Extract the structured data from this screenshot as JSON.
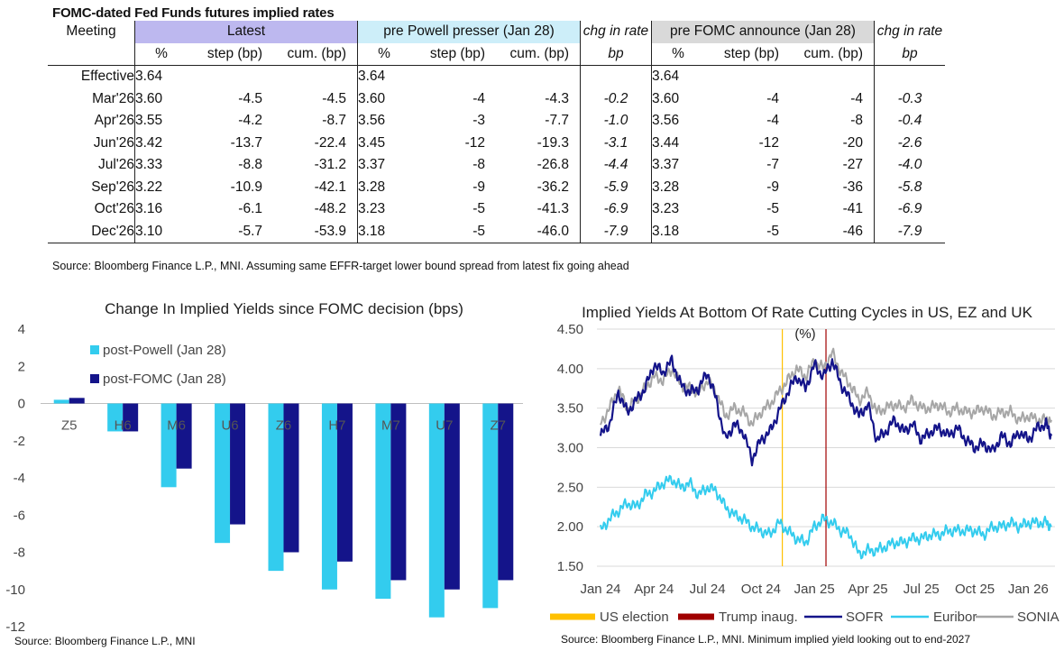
{
  "table": {
    "title": "FOMC-dated Fed Funds futures implied rates",
    "group_headers": {
      "meeting": "Meeting",
      "latest": "Latest",
      "pre_powell": "pre Powell presser (Jan 28)",
      "chg1": "chg in rate",
      "pre_fomc": "pre FOMC announce (Jan 28)",
      "chg2": "chg in rate"
    },
    "sub_headers": [
      "%",
      "step (bp)",
      "cum. (bp)",
      "%",
      "step (bp)",
      "cum. (bp)",
      "bp",
      "%",
      "step (bp)",
      "cum. (bp)",
      "bp"
    ],
    "rows": [
      [
        "Effective",
        "3.64",
        "",
        "",
        "3.64",
        "",
        "",
        "",
        "3.64",
        "",
        "",
        ""
      ],
      [
        "Mar'26",
        "3.60",
        "-4.5",
        "-4.5",
        "3.60",
        "-4",
        "-4.3",
        "-0.2",
        "3.60",
        "-4",
        "-4",
        "-0.3"
      ],
      [
        "Apr'26",
        "3.55",
        "-4.2",
        "-8.7",
        "3.56",
        "-3",
        "-7.7",
        "-1.0",
        "3.56",
        "-4",
        "-8",
        "-0.4"
      ],
      [
        "Jun'26",
        "3.42",
        "-13.7",
        "-22.4",
        "3.45",
        "-12",
        "-19.3",
        "-3.1",
        "3.44",
        "-12",
        "-20",
        "-2.6"
      ],
      [
        "Jul'26",
        "3.33",
        "-8.8",
        "-31.2",
        "3.37",
        "-8",
        "-26.8",
        "-4.4",
        "3.37",
        "-7",
        "-27",
        "-4.0"
      ],
      [
        "Sep'26",
        "3.22",
        "-10.9",
        "-42.1",
        "3.28",
        "-9",
        "-36.2",
        "-5.9",
        "3.28",
        "-9",
        "-36",
        "-5.8"
      ],
      [
        "Oct'26",
        "3.16",
        "-6.1",
        "-48.2",
        "3.23",
        "-5",
        "-41.3",
        "-6.9",
        "3.23",
        "-5",
        "-41",
        "-6.9"
      ],
      [
        "Dec'26",
        "3.10",
        "-5.7",
        "-53.9",
        "3.18",
        "-5",
        "-46.0",
        "-7.9",
        "3.18",
        "-5",
        "-46",
        "-7.9"
      ]
    ],
    "source": "Source: Bloomberg Finance L.P., MNI. Assuming same  EFFR-target lower bound spread from latest fix going ahead"
  },
  "chart_data": [
    {
      "type": "bar",
      "title": "Change In Implied Yields since FOMC decision (bps)",
      "categories": [
        "Z5",
        "H6",
        "M6",
        "U6",
        "Z6",
        "H7",
        "M7",
        "U7",
        "Z7"
      ],
      "series": [
        {
          "name": "post-Powell (Jan 28)",
          "color": "#33ccee",
          "values": [
            0.2,
            -1.5,
            -4.5,
            -7.5,
            -9.0,
            -10.0,
            -10.5,
            -11.5,
            -11.0
          ]
        },
        {
          "name": "post-FOMC (Jan 28)",
          "color": "#14148a",
          "values": [
            0.3,
            -1.5,
            -3.5,
            -6.5,
            -8.0,
            -8.5,
            -9.5,
            -10.0,
            -9.5
          ]
        }
      ],
      "ylim": [
        -12,
        4
      ],
      "yticks": [
        4,
        2,
        0,
        -2,
        -4,
        -6,
        -8,
        -10,
        -12
      ],
      "legend": "top-left",
      "source": "Source: Bloomberg Finance L.P., MNI"
    },
    {
      "type": "line",
      "title": "Implied Yields At Bottom Of Rate Cutting Cycles in US, EZ and UK",
      "ylabel": "(%)",
      "ylim": [
        1.5,
        4.5
      ],
      "yticks": [
        "4.50",
        "4.00",
        "3.50",
        "3.00",
        "2.50",
        "2.00",
        "1.50"
      ],
      "xticks": [
        "Jan 24",
        "Apr 24",
        "Jul 24",
        "Oct 24",
        "Jan 25",
        "Apr 25",
        "Jul 25",
        "Oct 25",
        "Jan 26"
      ],
      "xrange_months": [
        0,
        25.5
      ],
      "vlines": [
        {
          "name": "US election",
          "month": 10.2,
          "color": "#ffc000"
        },
        {
          "name": "Trump inaug.",
          "month": 12.65,
          "color": "#a00000"
        }
      ],
      "series": [
        {
          "name": "SOFR",
          "color": "#14148a",
          "x": [
            0,
            0.5,
            1,
            1.5,
            2,
            2.5,
            3,
            3.5,
            4,
            4.5,
            5,
            5.5,
            6,
            6.5,
            7,
            7.5,
            8,
            8.5,
            9,
            9.5,
            10,
            10.5,
            11,
            11.5,
            12,
            12.5,
            13,
            13.5,
            14,
            14.5,
            15,
            15.5,
            16,
            16.5,
            17,
            17.5,
            18,
            18.5,
            19,
            19.5,
            20,
            20.5,
            21,
            21.5,
            22,
            22.5,
            23,
            23.5,
            24,
            24.5,
            25,
            25.3
          ],
          "values": [
            3.15,
            3.3,
            3.7,
            3.45,
            3.6,
            3.75,
            4.05,
            3.95,
            4.1,
            3.8,
            3.7,
            3.75,
            3.95,
            3.6,
            3.1,
            3.3,
            3.2,
            2.85,
            3.1,
            3.2,
            3.45,
            3.7,
            3.9,
            3.75,
            4.05,
            3.9,
            4.1,
            3.8,
            3.6,
            3.4,
            3.55,
            3.1,
            3.2,
            3.35,
            3.2,
            3.3,
            3.1,
            3.2,
            3.25,
            3.15,
            3.25,
            3.1,
            3.0,
            3.05,
            2.95,
            3.15,
            3.05,
            3.2,
            3.1,
            3.25,
            3.3,
            3.15
          ]
        },
        {
          "name": "Euribor",
          "color": "#33ccee",
          "x": [
            0,
            0.5,
            1,
            1.5,
            2,
            2.5,
            3,
            3.5,
            4,
            4.5,
            5,
            5.5,
            6,
            6.5,
            7,
            7.5,
            8,
            8.5,
            9,
            9.5,
            10,
            10.5,
            11,
            11.5,
            12,
            12.5,
            13,
            13.5,
            14,
            14.5,
            15,
            15.5,
            16,
            16.5,
            17,
            17.5,
            18,
            18.5,
            19,
            19.5,
            20,
            20.5,
            21,
            21.5,
            22,
            22.5,
            23,
            23.5,
            24,
            24.5,
            25,
            25.3
          ],
          "values": [
            1.95,
            2.1,
            2.2,
            2.3,
            2.25,
            2.4,
            2.45,
            2.55,
            2.6,
            2.5,
            2.55,
            2.4,
            2.5,
            2.45,
            2.25,
            2.15,
            2.1,
            2.0,
            1.95,
            1.9,
            2.05,
            1.95,
            1.85,
            1.8,
            2.0,
            2.1,
            2.05,
            1.95,
            1.9,
            1.65,
            1.7,
            1.7,
            1.75,
            1.8,
            1.8,
            1.85,
            1.85,
            1.9,
            1.9,
            1.95,
            1.95,
            1.95,
            1.95,
            1.9,
            2.0,
            2.0,
            2.05,
            2.0,
            2.05,
            2.05,
            2.05,
            2.0
          ]
        },
        {
          "name": "SONIA",
          "color": "#a6a6a6",
          "x": [
            0,
            0.5,
            1,
            1.5,
            2,
            2.5,
            3,
            3.5,
            4,
            4.5,
            5,
            5.5,
            6,
            6.5,
            7,
            7.5,
            8,
            8.5,
            9,
            9.5,
            10,
            10.5,
            11,
            11.5,
            12,
            12.5,
            13,
            13.5,
            14,
            14.5,
            15,
            15.5,
            16,
            16.5,
            17,
            17.5,
            18,
            18.5,
            19,
            19.5,
            20,
            20.5,
            21,
            21.5,
            22,
            22.5,
            23,
            23.5,
            24,
            24.5,
            25,
            25.3
          ],
          "values": [
            3.3,
            3.5,
            3.75,
            3.5,
            3.6,
            3.75,
            3.9,
            3.85,
            4.0,
            3.8,
            3.75,
            3.7,
            3.85,
            3.7,
            3.4,
            3.5,
            3.45,
            3.3,
            3.45,
            3.55,
            3.7,
            3.85,
            4.0,
            3.9,
            4.1,
            4.0,
            4.2,
            3.95,
            3.8,
            3.6,
            3.7,
            3.45,
            3.5,
            3.55,
            3.5,
            3.6,
            3.5,
            3.5,
            3.55,
            3.45,
            3.5,
            3.45,
            3.45,
            3.5,
            3.4,
            3.45,
            3.45,
            3.35,
            3.4,
            3.35,
            3.35,
            3.35
          ]
        }
      ],
      "legend": "bottom",
      "source": "Source: Bloomberg Finance L.P., MNI. Minimum implied yield looking out to end-2027"
    }
  ]
}
